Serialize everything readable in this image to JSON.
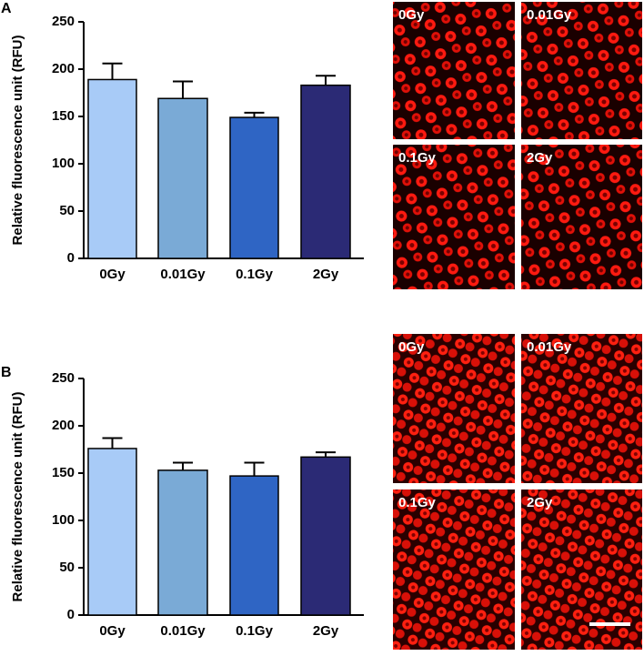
{
  "chart_data": [
    {
      "type": "bar",
      "y_label": "Relative fluorescence unit (RFU)",
      "categories": [
        "0Gy",
        "0.01Gy",
        "0.1Gy",
        "2Gy"
      ],
      "values": [
        189,
        169,
        149,
        183
      ],
      "errors": [
        17,
        18,
        5,
        10
      ],
      "colors": [
        "#a8cbf7",
        "#7aaad6",
        "#2f65c4",
        "#2b2a75"
      ],
      "ylim": [
        0,
        250
      ],
      "yticks": [
        0,
        50,
        100,
        150,
        200,
        250
      ]
    },
    {
      "type": "bar",
      "y_label": "Relative fluorescence unit (RFU)",
      "categories": [
        "0Gy",
        "0.01Gy",
        "0.1Gy",
        "2Gy"
      ],
      "values": [
        176,
        153,
        147,
        167
      ],
      "errors": [
        11,
        8,
        14,
        5
      ],
      "colors": [
        "#a8cbf7",
        "#7aaad6",
        "#2f65c4",
        "#2b2a75"
      ],
      "ylim": [
        0,
        250
      ],
      "yticks": [
        0,
        50,
        100,
        150,
        200,
        250
      ]
    }
  ],
  "panels": [
    {
      "label": "A",
      "image_labels": [
        "0Gy",
        "0.01Gy",
        "0.1Gy",
        "2Gy"
      ]
    },
    {
      "label": "B",
      "image_labels": [
        "0Gy",
        "0.01Gy",
        "0.1Gy",
        "2Gy"
      ]
    }
  ]
}
